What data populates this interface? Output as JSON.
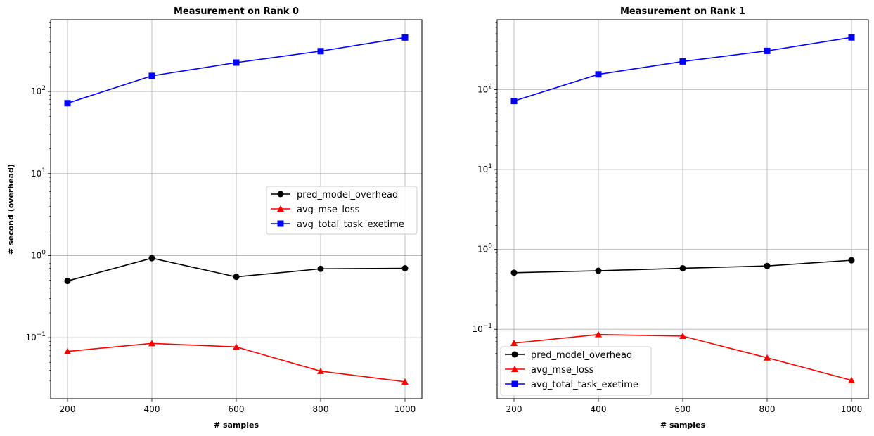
{
  "chart_data": [
    {
      "type": "line",
      "title": "Measurement on Rank 0",
      "xlabel": "# samples",
      "ylabel": "# second (overhead)",
      "yscale": "log",
      "grid": true,
      "legend_position": "center-right",
      "x": [
        200,
        400,
        600,
        800,
        1000
      ],
      "x_ticks": [
        "200",
        "400",
        "600",
        "800",
        "1000"
      ],
      "xlim": [
        160,
        1040
      ],
      "ylim": [
        0.018,
        750
      ],
      "series": [
        {
          "name": "pred_model_overhead",
          "color": "#000000",
          "marker": "circle",
          "values": [
            0.49,
            0.93,
            0.55,
            0.69,
            0.7
          ]
        },
        {
          "name": "avg_mse_loss",
          "color": "#ff0000",
          "marker": "triangle",
          "values": [
            0.068,
            0.085,
            0.077,
            0.039,
            0.029
          ]
        },
        {
          "name": "avg_total_task_exetime",
          "color": "#0000ff",
          "marker": "square",
          "values": [
            72,
            155,
            225,
            310,
            455
          ]
        }
      ]
    },
    {
      "type": "line",
      "title": "Measurement on Rank 1",
      "xlabel": "# samples",
      "ylabel": "",
      "yscale": "log",
      "grid": true,
      "legend_position": "lower-left",
      "x": [
        200,
        400,
        600,
        800,
        1000
      ],
      "x_ticks": [
        "200",
        "400",
        "600",
        "800",
        "1000"
      ],
      "xlim": [
        160,
        1040
      ],
      "ylim": [
        0.0135,
        750
      ],
      "series": [
        {
          "name": "pred_model_overhead",
          "color": "#000000",
          "marker": "circle",
          "values": [
            0.51,
            0.54,
            0.58,
            0.62,
            0.73
          ]
        },
        {
          "name": "avg_mse_loss",
          "color": "#ff0000",
          "marker": "triangle",
          "values": [
            0.067,
            0.086,
            0.082,
            0.044,
            0.023
          ]
        },
        {
          "name": "avg_total_task_exetime",
          "color": "#0000ff",
          "marker": "square",
          "values": [
            72,
            155,
            225,
            305,
            450
          ]
        }
      ]
    }
  ]
}
